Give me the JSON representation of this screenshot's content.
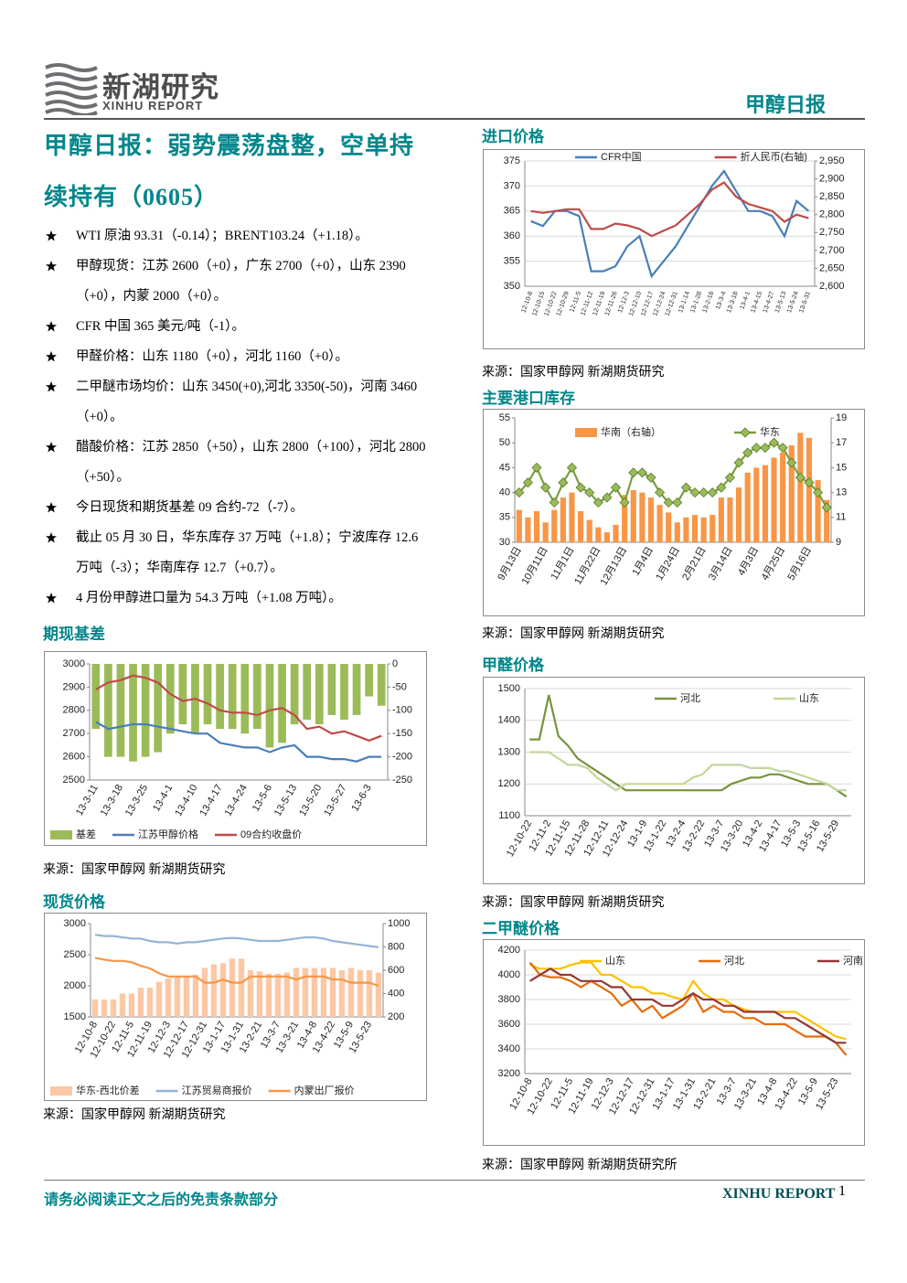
{
  "header": {
    "brand_cn": "新湖研究",
    "brand_en": "XINHU REPORT",
    "report_type": "甲醇日报"
  },
  "article": {
    "title": "甲醇日报：弱势震荡盘整，空单持续持有（0605）",
    "bullets": [
      "WTI 原油 93.31（-0.14）；BRENT103.24（+1.18）。",
      "甲醇现货：江苏 2600（+0），广东 2700（+0），山东 2390（+0），内蒙 2000（+0）。",
      "CFR 中国 365 美元/吨（-1）。",
      "甲醛价格：山东 1180（+0），河北 1160（+0）。",
      "二甲醚市场均价：山东 3450(+0),河北 3350(-50)，河南 3460（+0）。",
      "醋酸价格：江苏 2850（+50），山东 2800（+100），河北 2800（+50）。",
      "今日现货和期货基差 09 合约-72（-7）。",
      "截止 05 月 30 日，华东库存 37 万吨（+1.8）；宁波库存 12.6 万吨（-3）；华南库存 12.7（+0.7）。",
      "4 月份甲醇进口量为 54.3 万吨（+1.08 万吨）。"
    ]
  },
  "chart_data": [
    {
      "type": "line",
      "title": "进口价格",
      "source": "来源：国家甲醇网 新湖期货研究",
      "grid": true,
      "legend": "top",
      "categories": [
        "12-10-8",
        "12-10-15",
        "12-10-22",
        "12-10-29",
        "12-11-5",
        "12-11-12",
        "12-11-19",
        "12-11-26",
        "12-12-3",
        "12-12-10",
        "12-12-17",
        "12-12-24",
        "12-12-31",
        "13-1-14",
        "13-1-28",
        "13-2-18",
        "13-3-4",
        "13-3-18",
        "13-4-1",
        "13-4-15",
        "13-4-27",
        "13-5-13",
        "13-5-24",
        "13-5-31"
      ],
      "ylim": [
        350,
        375
      ],
      "yticks": [
        350,
        355,
        360,
        365,
        370,
        375
      ],
      "y2lim": [
        2600,
        2950
      ],
      "y2ticks": [
        {
          "value": 2600,
          "label": "2,600"
        },
        {
          "value": 2650,
          "label": "2,650"
        },
        {
          "value": 2700,
          "label": "2,700"
        },
        {
          "value": 2750,
          "label": "2,750"
        },
        {
          "value": 2800,
          "label": "2,800"
        },
        {
          "value": 2850,
          "label": "2,850"
        },
        {
          "value": 2900,
          "label": "2,900"
        },
        {
          "value": 2950,
          "label": "2,950"
        }
      ],
      "series": [
        {
          "name": "CFR中国",
          "color": "#4a7ebb",
          "type": "line",
          "values": [
            363,
            362,
            365,
            365,
            364,
            353,
            353,
            354,
            358,
            360,
            352,
            355,
            358,
            362,
            366,
            370,
            373,
            369,
            365,
            365,
            364,
            360,
            367,
            365
          ]
        },
        {
          "name": "折人民币(右轴)",
          "color": "#be4b48",
          "type": "line",
          "axis": "y2",
          "values": [
            2810,
            2805,
            2810,
            2815,
            2815,
            2760,
            2760,
            2775,
            2770,
            2760,
            2740,
            2755,
            2770,
            2800,
            2830,
            2870,
            2890,
            2850,
            2830,
            2820,
            2810,
            2780,
            2800,
            2790
          ]
        }
      ]
    },
    {
      "type": "bar_line",
      "title": "主要港口库存",
      "source": "来源：国家甲醇网 新湖期货研究",
      "grid": false,
      "legend": "top",
      "categories": [
        "9月13日",
        null,
        null,
        "10月11日",
        null,
        null,
        "11月1日",
        null,
        null,
        "11月22日",
        null,
        null,
        "12月13日",
        null,
        null,
        "1月4日",
        null,
        null,
        "1月24日",
        null,
        null,
        "2月21日",
        null,
        null,
        "3月14日",
        null,
        null,
        "4月3日",
        null,
        null,
        "4月25日",
        null,
        null,
        "5月16日",
        null,
        null
      ],
      "ylim": [
        30,
        55
      ],
      "yticks": [
        30,
        35,
        40,
        45,
        50,
        55
      ],
      "y2lim": [
        9,
        19
      ],
      "y2ticks": [
        9,
        11,
        13,
        15,
        17,
        19
      ],
      "series": [
        {
          "name": "华南（右轴）",
          "color": "#f79646",
          "type": "bar",
          "axis": "y2",
          "values": [
            11.6,
            11,
            11.5,
            10.6,
            11.6,
            12.6,
            13,
            11.5,
            10.8,
            10.2,
            9.8,
            10.4,
            12.8,
            13.2,
            13,
            12.6,
            12,
            11.4,
            10.6,
            11,
            11.2,
            11,
            11.2,
            12.6,
            12.6,
            13.4,
            14.6,
            15,
            15.2,
            15.8,
            16.2,
            16.8,
            17.8,
            17.4,
            14,
            12.4
          ]
        },
        {
          "name": "华东",
          "color": "#77a03c",
          "type": "line",
          "marker": "diamond",
          "marker_color": "#9bbb59",
          "values": [
            40,
            42,
            45,
            41,
            38,
            42,
            45,
            41,
            40,
            38,
            39,
            41,
            38,
            44,
            44,
            43,
            40,
            38,
            38,
            41,
            40,
            40,
            40,
            41,
            43,
            46,
            48,
            49,
            49,
            50,
            49,
            46,
            43,
            42,
            40,
            37
          ]
        }
      ]
    },
    {
      "type": "bar_line",
      "title": "期现基差",
      "source": "来源：国家甲醇网 新湖期货研究",
      "grid": false,
      "legend": "bottom",
      "categories": [
        "13-3-11",
        null,
        "13-3-18",
        null,
        "13-3-25",
        null,
        "13-4-1",
        null,
        "13-4-10",
        null,
        "13-4-17",
        null,
        "13-4-24",
        null,
        "13-5-6",
        null,
        "13-5-13",
        null,
        "13-5-20",
        null,
        "13-5-27",
        null,
        "13-6-3",
        null
      ],
      "ylim": [
        2500,
        3000
      ],
      "yticks": [
        2500,
        2600,
        2700,
        2800,
        2900,
        3000
      ],
      "y2lim": [
        -250,
        0
      ],
      "y2ticks": [
        -250,
        -200,
        -150,
        -100,
        -50,
        0
      ],
      "series": [
        {
          "name": "基差",
          "color": "#9bbb59",
          "type": "bar",
          "axis": "y2",
          "values": [
            -140,
            -200,
            -200,
            -210,
            -200,
            -190,
            -150,
            -130,
            -150,
            -130,
            -140,
            -140,
            -150,
            -140,
            -180,
            -170,
            -130,
            -120,
            -130,
            -110,
            -120,
            -110,
            -70,
            -90
          ]
        },
        {
          "name": "江苏甲醇价格",
          "color": "#4a7ebb",
          "type": "line",
          "values": [
            2750,
            2720,
            2730,
            2740,
            2740,
            2730,
            2720,
            2710,
            2700,
            2700,
            2660,
            2650,
            2640,
            2640,
            2620,
            2640,
            2650,
            2600,
            2600,
            2590,
            2590,
            2580,
            2600,
            2600
          ]
        },
        {
          "name": "09合约收盘价",
          "color": "#be4b48",
          "type": "line",
          "values": [
            2890,
            2920,
            2930,
            2950,
            2940,
            2920,
            2870,
            2840,
            2850,
            2830,
            2800,
            2790,
            2790,
            2780,
            2800,
            2810,
            2780,
            2720,
            2730,
            2700,
            2710,
            2690,
            2670,
            2690
          ]
        }
      ]
    },
    {
      "type": "line",
      "title": "甲醛价格",
      "source": "来源：国家甲醇网 新湖期货研究",
      "grid": true,
      "legend": "top",
      "categories": [
        "12-10-22",
        null,
        "12-11-2",
        null,
        "12-11-15",
        null,
        "12-11-28",
        null,
        "12-12-11",
        null,
        "12-12-24",
        null,
        "13-1-9",
        null,
        "13-1-22",
        null,
        "13-2-4",
        null,
        "13-2-22",
        null,
        "13-3-7",
        null,
        "13-3-20",
        null,
        "13-4-2",
        null,
        "13-4-17",
        null,
        "13-5-3",
        null,
        "13-5-16",
        null,
        "13-5-29",
        null
      ],
      "ylim": [
        1100,
        1500
      ],
      "yticks": [
        1100,
        1200,
        1300,
        1400,
        1500
      ],
      "series": [
        {
          "name": "河北",
          "color": "#77933c",
          "type": "line",
          "values": [
            1340,
            1340,
            1480,
            1350,
            1320,
            1280,
            1260,
            1240,
            1220,
            1200,
            1180,
            1180,
            1180,
            1180,
            1180,
            1180,
            1180,
            1180,
            1180,
            1180,
            1180,
            1200,
            1210,
            1220,
            1220,
            1230,
            1230,
            1220,
            1210,
            1200,
            1200,
            1200,
            1180,
            1160
          ]
        },
        {
          "name": "山东",
          "color": "#c3d69b",
          "type": "line",
          "values": [
            1300,
            1300,
            1300,
            1280,
            1260,
            1260,
            1250,
            1220,
            1200,
            1180,
            1200,
            1200,
            1200,
            1200,
            1200,
            1200,
            1200,
            1220,
            1230,
            1260,
            1260,
            1260,
            1260,
            1250,
            1250,
            1250,
            1240,
            1240,
            1230,
            1220,
            1210,
            1200,
            1180,
            1180
          ]
        }
      ]
    },
    {
      "type": "bar_line",
      "title": "现货价格",
      "source": "来源：国家甲醇网 新湖期货研究",
      "grid": false,
      "legend": "bottom",
      "categories": [
        "12-10-8",
        null,
        "12-10-22",
        null,
        "12-11-5",
        null,
        "12-11-19",
        null,
        "12-12-3",
        null,
        "12-12-17",
        null,
        "12-12-31",
        null,
        "13-1-17",
        null,
        "13-1-31",
        null,
        "13-2-21",
        null,
        "13-3-7",
        null,
        "13-3-21",
        null,
        "13-4-8",
        null,
        "13-4-22",
        null,
        "13-5-9",
        null,
        "13-5-23",
        null
      ],
      "ylim": [
        1500,
        3000
      ],
      "yticks": [
        1500,
        2000,
        2500,
        3000
      ],
      "y2lim": [
        200,
        1000
      ],
      "y2ticks": [
        200,
        400,
        600,
        800,
        1000
      ],
      "series": [
        {
          "name": "华东-西北价差",
          "color": "#fac8a4",
          "type": "bar",
          "axis": "y2",
          "values": [
            350,
            350,
            350,
            400,
            400,
            450,
            450,
            500,
            530,
            550,
            550,
            560,
            620,
            650,
            660,
            700,
            700,
            600,
            590,
            570,
            570,
            580,
            620,
            620,
            620,
            620,
            620,
            600,
            620,
            600,
            600,
            580
          ]
        },
        {
          "name": "江苏贸易商报价",
          "color": "#95b3d7",
          "type": "line",
          "values": [
            2820,
            2800,
            2800,
            2780,
            2760,
            2760,
            2720,
            2700,
            2700,
            2680,
            2700,
            2700,
            2720,
            2740,
            2760,
            2770,
            2760,
            2740,
            2720,
            2720,
            2720,
            2740,
            2760,
            2780,
            2780,
            2760,
            2720,
            2700,
            2680,
            2660,
            2640,
            2620
          ]
        },
        {
          "name": "内蒙出厂报价",
          "color": "#f79646",
          "type": "line",
          "values": [
            2450,
            2420,
            2400,
            2400,
            2380,
            2320,
            2280,
            2200,
            2150,
            2150,
            2150,
            2150,
            2050,
            2050,
            2100,
            2050,
            2050,
            2150,
            2150,
            2150,
            2150,
            2150,
            2100,
            2150,
            2150,
            2150,
            2100,
            2100,
            2050,
            2050,
            2050,
            2000
          ]
        }
      ]
    },
    {
      "type": "line",
      "title": "二甲醚价格",
      "source": "来源：国家甲醇网 新湖期货研究所",
      "grid": true,
      "legend": "top",
      "categories": [
        "12-10-8",
        null,
        "12-10-22",
        null,
        "12-11-5",
        null,
        "12-11-19",
        null,
        "12-12-3",
        null,
        "12-12-17",
        null,
        "12-12-31",
        null,
        "13-1-17",
        null,
        "13-1-31",
        null,
        "13-2-21",
        null,
        "13-3-7",
        null,
        "13-3-21",
        null,
        "13-4-8",
        null,
        "13-4-22",
        null,
        "13-5-9",
        null,
        "13-5-23",
        null
      ],
      "ylim": [
        3200,
        4200
      ],
      "yticks": [
        3200,
        3400,
        3600,
        3800,
        4000,
        4200
      ],
      "series": [
        {
          "name": "山东",
          "color": "#ffc000",
          "type": "line",
          "values": [
            4080,
            4050,
            4050,
            4050,
            4080,
            4100,
            4100,
            4000,
            4000,
            3950,
            3900,
            3900,
            3850,
            3850,
            3820,
            3800,
            3950,
            3850,
            3800,
            3800,
            3750,
            3720,
            3700,
            3700,
            3700,
            3700,
            3700,
            3650,
            3600,
            3550,
            3500,
            3480
          ]
        },
        {
          "name": "河北",
          "color": "#e46c0a",
          "type": "line",
          "values": [
            4100,
            4000,
            3980,
            3980,
            3950,
            3900,
            3950,
            3900,
            3850,
            3750,
            3800,
            3700,
            3750,
            3650,
            3700,
            3750,
            3850,
            3700,
            3750,
            3700,
            3700,
            3650,
            3650,
            3600,
            3600,
            3600,
            3550,
            3500,
            3500,
            3500,
            3450,
            3350
          ]
        },
        {
          "name": "河南",
          "color": "#953735",
          "type": "line",
          "values": [
            3950,
            4000,
            4050,
            4000,
            4000,
            3950,
            3950,
            3950,
            3900,
            3900,
            3800,
            3800,
            3800,
            3750,
            3750,
            3800,
            3850,
            3800,
            3800,
            3750,
            3750,
            3700,
            3700,
            3700,
            3700,
            3650,
            3650,
            3600,
            3550,
            3500,
            3450,
            3450
          ]
        }
      ]
    }
  ],
  "footer": {
    "disclaimer": "请务必阅读正文之后的免责条款部分",
    "brand": "XINHU REPORT",
    "page": 1
  }
}
